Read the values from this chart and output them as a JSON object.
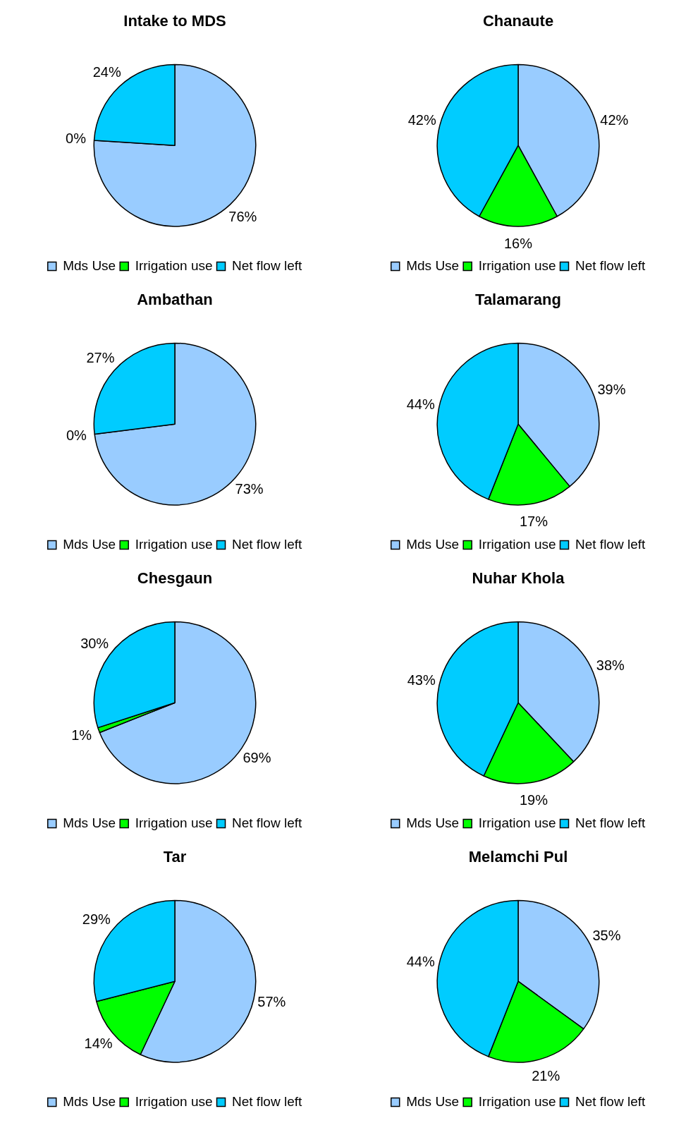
{
  "chart_data": [
    {
      "type": "pie",
      "title": "Intake to MDS",
      "categories": [
        "Mds Use",
        "Irrigation use",
        "Net flow left"
      ],
      "values": [
        76,
        0,
        24
      ],
      "value_labels": [
        "76%",
        "0%",
        "24%"
      ],
      "colors": [
        "#99ccff",
        "#00ff00",
        "#00ccff"
      ],
      "legend": "bottom"
    },
    {
      "type": "pie",
      "title": "Chanaute",
      "categories": [
        "Mds Use",
        "Irrigation use",
        "Net flow left"
      ],
      "values": [
        42,
        16,
        42
      ],
      "value_labels": [
        "42%",
        "16%",
        "42%"
      ],
      "colors": [
        "#99ccff",
        "#00ff00",
        "#00ccff"
      ],
      "legend": "bottom"
    },
    {
      "type": "pie",
      "title": "Ambathan",
      "categories": [
        "Mds Use",
        "Irrigation use",
        "Net flow left"
      ],
      "values": [
        73,
        0,
        27
      ],
      "value_labels": [
        "73%",
        "0%",
        "27%"
      ],
      "colors": [
        "#99ccff",
        "#00ff00",
        "#00ccff"
      ],
      "legend": "bottom"
    },
    {
      "type": "pie",
      "title": "Talamarang",
      "categories": [
        "Mds Use",
        "Irrigation use",
        "Net flow left"
      ],
      "values": [
        39,
        17,
        44
      ],
      "value_labels": [
        "39%",
        "17%",
        "44%"
      ],
      "colors": [
        "#99ccff",
        "#00ff00",
        "#00ccff"
      ],
      "legend": "bottom"
    },
    {
      "type": "pie",
      "title": "Chesgaun",
      "categories": [
        "Mds Use",
        "Irrigation use",
        "Net flow left"
      ],
      "values": [
        69,
        1,
        30
      ],
      "value_labels": [
        "69%",
        "1%",
        "30%"
      ],
      "colors": [
        "#99ccff",
        "#00ff00",
        "#00ccff"
      ],
      "legend": "bottom"
    },
    {
      "type": "pie",
      "title": "Nuhar Khola",
      "categories": [
        "Mds Use",
        "Irrigation use",
        "Net flow left"
      ],
      "values": [
        38,
        19,
        43
      ],
      "value_labels": [
        "38%",
        "19%",
        "43%"
      ],
      "colors": [
        "#99ccff",
        "#00ff00",
        "#00ccff"
      ],
      "legend": "bottom"
    },
    {
      "type": "pie",
      "title": "Tar",
      "categories": [
        "Mds Use",
        "Irrigation use",
        "Net flow left"
      ],
      "values": [
        57,
        14,
        29
      ],
      "value_labels": [
        "57%",
        "14%",
        "29%"
      ],
      "colors": [
        "#99ccff",
        "#00ff00",
        "#00ccff"
      ],
      "legend": "bottom"
    },
    {
      "type": "pie",
      "title": "Melamchi Pul",
      "categories": [
        "Mds Use",
        "Irrigation use",
        "Net flow left"
      ],
      "values": [
        35,
        21,
        44
      ],
      "value_labels": [
        "35%",
        "21%",
        "44%"
      ],
      "colors": [
        "#99ccff",
        "#00ff00",
        "#00ccff"
      ],
      "legend": "bottom"
    }
  ]
}
